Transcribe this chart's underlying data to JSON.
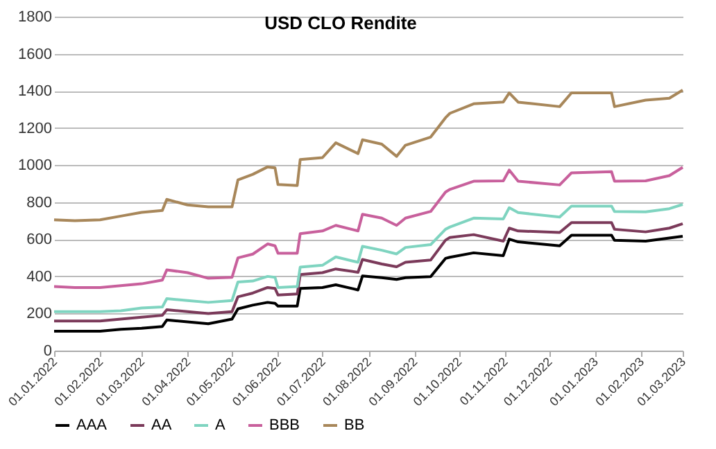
{
  "chart_data": {
    "type": "line",
    "title": "USD CLO Rendite",
    "x": [
      "2022-01-01",
      "2022-01-15",
      "2022-02-01",
      "2022-02-15",
      "2022-03-01",
      "2022-03-15",
      "2022-03-18",
      "2022-04-01",
      "2022-04-15",
      "2022-05-01",
      "2022-05-05",
      "2022-05-15",
      "2022-05-25",
      "2022-05-30",
      "2022-06-01",
      "2022-06-14",
      "2022-06-16",
      "2022-07-01",
      "2022-07-10",
      "2022-07-25",
      "2022-07-28",
      "2022-08-10",
      "2022-08-20",
      "2022-08-26",
      "2022-09-12",
      "2022-09-22",
      "2022-09-25",
      "2022-10-11",
      "2022-10-31",
      "2022-11-04",
      "2022-11-10",
      "2022-12-08",
      "2022-12-16",
      "2023-01-12",
      "2023-01-14",
      "2023-02-04",
      "2023-02-20",
      "2023-03-01"
    ],
    "series": [
      {
        "name": "AAA",
        "color": "#000000",
        "values": [
          105,
          105,
          105,
          115,
          120,
          130,
          165,
          155,
          145,
          170,
          225,
          245,
          260,
          255,
          240,
          240,
          335,
          340,
          355,
          327,
          402,
          393,
          384,
          393,
          399,
          497,
          503,
          527,
          512,
          601,
          586,
          565,
          622,
          622,
          595,
          590,
          607,
          616
        ]
      },
      {
        "name": "AA",
        "color": "#7b3a5a",
        "values": [
          160,
          160,
          160,
          170,
          180,
          190,
          220,
          210,
          200,
          210,
          290,
          310,
          340,
          335,
          300,
          305,
          410,
          420,
          440,
          422,
          491,
          467,
          452,
          476,
          488,
          595,
          610,
          625,
          590,
          660,
          645,
          637,
          690,
          690,
          654,
          640,
          660,
          684
        ]
      },
      {
        "name": "A",
        "color": "#7fd4c0",
        "values": [
          210,
          210,
          210,
          215,
          230,
          235,
          280,
          270,
          260,
          270,
          370,
          375,
          400,
          395,
          340,
          345,
          450,
          460,
          505,
          476,
          562,
          541,
          521,
          556,
          571,
          654,
          666,
          714,
          710,
          770,
          744,
          720,
          779,
          779,
          750,
          748,
          765,
          788
        ]
      },
      {
        "name": "BBB",
        "color": "#c8609c",
        "values": [
          345,
          340,
          340,
          350,
          360,
          380,
          435,
          420,
          390,
          395,
          500,
          520,
          575,
          565,
          525,
          525,
          630,
          645,
          675,
          645,
          735,
          714,
          675,
          714,
          750,
          854,
          869,
          913,
          915,
          973,
          913,
          893,
          958,
          964,
          913,
          915,
          943,
          988
        ]
      },
      {
        "name": "BB",
        "color": "#a8875a",
        "values": [
          705,
          700,
          705,
          725,
          745,
          755,
          815,
          785,
          775,
          775,
          920,
          950,
          990,
          985,
          895,
          890,
          1030,
          1040,
          1120,
          1062,
          1136,
          1113,
          1047,
          1107,
          1151,
          1255,
          1279,
          1330,
          1340,
          1389,
          1339,
          1315,
          1389,
          1389,
          1315,
          1350,
          1360,
          1404
        ]
      }
    ],
    "xlim": [
      "2022-01-01",
      "2023-03-01"
    ],
    "xticks": [
      {
        "value": "2022-01-01",
        "label": "01.01.2022"
      },
      {
        "value": "2022-02-01",
        "label": "01.02.2022"
      },
      {
        "value": "2022-03-01",
        "label": "01.03.2022"
      },
      {
        "value": "2022-04-01",
        "label": "01.04.2022"
      },
      {
        "value": "2022-05-01",
        "label": "01.05.2022"
      },
      {
        "value": "2022-06-01",
        "label": "01.06.2022"
      },
      {
        "value": "2022-07-01",
        "label": "01.07.2022"
      },
      {
        "value": "2022-08-01",
        "label": "01.08.2022"
      },
      {
        "value": "2022-09-01",
        "label": "01.09.2022"
      },
      {
        "value": "2022-10-01",
        "label": "01.10.2022"
      },
      {
        "value": "2022-11-01",
        "label": "01.11.2022"
      },
      {
        "value": "2022-12-01",
        "label": "01.12.2022"
      },
      {
        "value": "2023-01-01",
        "label": "01.01.2023"
      },
      {
        "value": "2023-02-01",
        "label": "01.02.2023"
      },
      {
        "value": "2023-03-01",
        "label": "01.03.2023"
      }
    ],
    "ylim": [
      0,
      1800
    ],
    "yticks": [
      0,
      200,
      400,
      600,
      800,
      1000,
      1200,
      1400,
      1600,
      1800
    ],
    "grid": "y",
    "legend": "bottom",
    "line_style": "solid",
    "marker": "none"
  }
}
